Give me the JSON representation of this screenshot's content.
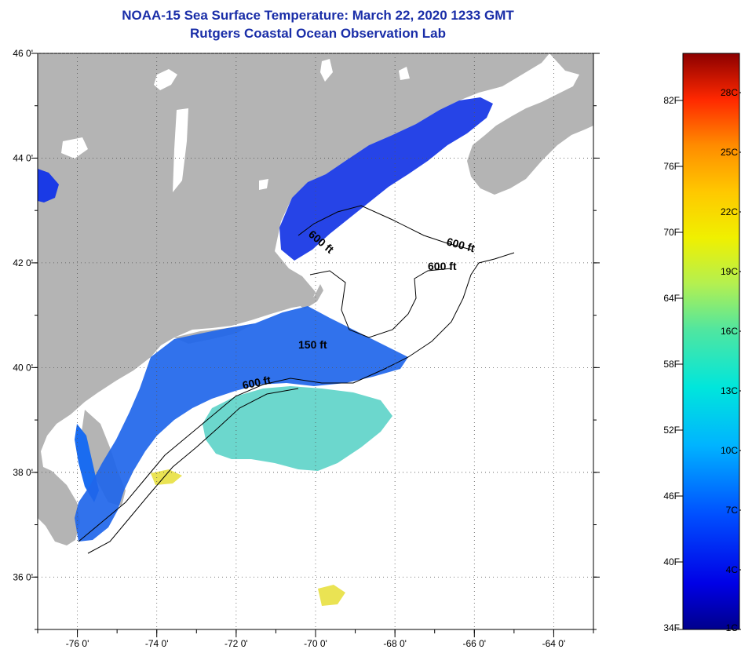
{
  "header": {
    "title": "NOAA-15 Sea Surface Temperature:  March 22, 2020 1233 GMT",
    "subtitle": "Rutgers Coastal Ocean Observation Lab"
  },
  "axes": {
    "lon_labels": [
      "-76 0'",
      "-74 0'",
      "-72 0'",
      "-70 0'",
      "-68 0'",
      "-66 0'",
      "-64 0'"
    ],
    "lat_labels": [
      "46 0'",
      "44 0'",
      "42 0'",
      "40 0'",
      "38 0'",
      "36 0'"
    ]
  },
  "contours": {
    "labels": [
      "600 ft",
      "600 ft",
      "600 ft",
      "150 ft",
      "600 ft"
    ]
  },
  "colorbar": {
    "fahrenheit": [
      "82F",
      "76F",
      "70F",
      "64F",
      "58F",
      "52F",
      "46F",
      "40F",
      "34F"
    ],
    "celsius": [
      "28C",
      "25C",
      "22C",
      "19C",
      "16C",
      "13C",
      "10C",
      "7C",
      "4C",
      "1C"
    ]
  },
  "colors": {
    "land": "#b4b4b4",
    "ocean_cloud": "#ffffff",
    "cold_water": "#1a3ae6",
    "title": "#1a2ea8"
  }
}
